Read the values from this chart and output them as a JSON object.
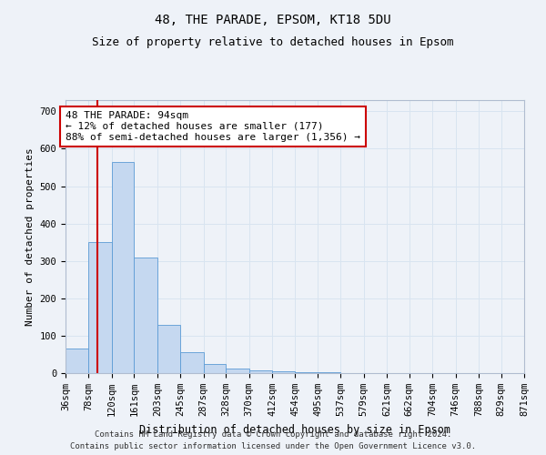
{
  "title": "48, THE PARADE, EPSOM, KT18 5DU",
  "subtitle": "Size of property relative to detached houses in Epsom",
  "xlabel": "Distribution of detached houses by size in Epsom",
  "ylabel": "Number of detached properties",
  "bar_color": "#c5d8f0",
  "bar_edge_color": "#5b9bd5",
  "grid_color": "#d8e4f0",
  "background_color": "#eef2f8",
  "annotation_text": "48 THE PARADE: 94sqm\n← 12% of detached houses are smaller (177)\n88% of semi-detached houses are larger (1,356) →",
  "annotation_box_color": "#ffffff",
  "annotation_box_edge": "#cc0000",
  "red_line_x": 94,
  "red_line_color": "#cc0000",
  "bin_edges": [
    36,
    78,
    120,
    161,
    203,
    245,
    287,
    328,
    370,
    412,
    454,
    495,
    537,
    579,
    621,
    662,
    704,
    746,
    788,
    829,
    871
  ],
  "bar_heights": [
    65,
    350,
    565,
    310,
    128,
    55,
    25,
    13,
    8,
    5,
    3,
    2,
    1,
    1,
    0,
    1,
    0,
    0,
    1,
    0
  ],
  "ylim": [
    0,
    730
  ],
  "yticks": [
    0,
    100,
    200,
    300,
    400,
    500,
    600,
    700
  ],
  "footer_line1": "Contains HM Land Registry data © Crown copyright and database right 2024.",
  "footer_line2": "Contains public sector information licensed under the Open Government Licence v3.0.",
  "title_fontsize": 10,
  "subtitle_fontsize": 9,
  "xlabel_fontsize": 8.5,
  "ylabel_fontsize": 8,
  "tick_fontsize": 7.5,
  "annotation_fontsize": 8,
  "footer_fontsize": 6.5
}
